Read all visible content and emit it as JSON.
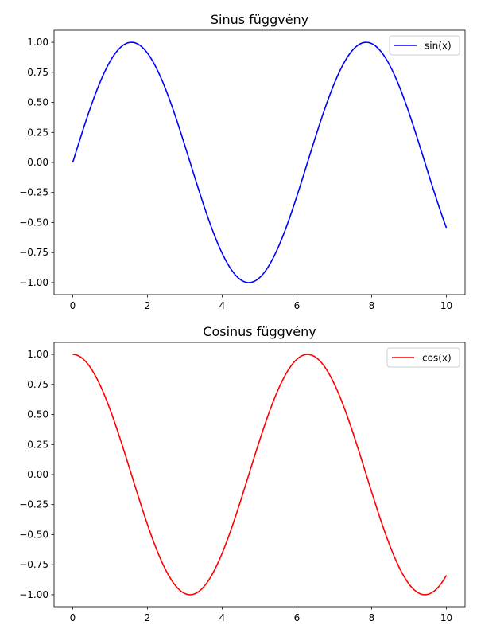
{
  "chart_data": [
    {
      "type": "line",
      "title": "Sinus függvény",
      "xlabel": "",
      "ylabel": "",
      "xlim": [
        -0.5,
        10.5
      ],
      "ylim": [
        -1.1,
        1.1
      ],
      "x_ticks": [
        0,
        2,
        4,
        6,
        8,
        10
      ],
      "x_tick_labels": [
        "0",
        "2",
        "4",
        "6",
        "8",
        "10"
      ],
      "y_ticks": [
        -1.0,
        -0.75,
        -0.5,
        -0.25,
        0.0,
        0.25,
        0.5,
        0.75,
        1.0
      ],
      "y_tick_labels": [
        "−1.00",
        "−0.75",
        "−0.50",
        "−0.25",
        "0.00",
        "0.25",
        "0.50",
        "0.75",
        "1.00"
      ],
      "grid": false,
      "legend_position": "top-right",
      "series": [
        {
          "name": "sin(x)",
          "color": "#0000ff",
          "function": "sin",
          "x": [
            0,
            0.5,
            1,
            1.5708,
            2,
            2.5,
            3,
            3.5,
            4,
            4.7124,
            5,
            5.5,
            6,
            6.5,
            7,
            7.5,
            7.854,
            8,
            8.5,
            9,
            9.5,
            10
          ],
          "values": [
            0,
            0.479,
            0.841,
            1,
            0.909,
            0.598,
            0.141,
            -0.351,
            -0.757,
            -1,
            -0.959,
            -0.706,
            -0.279,
            0.215,
            0.657,
            0.938,
            1,
            0.989,
            0.798,
            0.412,
            -0.075,
            -0.544
          ]
        }
      ]
    },
    {
      "type": "line",
      "title": "Cosinus függvény",
      "xlabel": "",
      "ylabel": "",
      "xlim": [
        -0.5,
        10.5
      ],
      "ylim": [
        -1.1,
        1.1
      ],
      "x_ticks": [
        0,
        2,
        4,
        6,
        8,
        10
      ],
      "x_tick_labels": [
        "0",
        "2",
        "4",
        "6",
        "8",
        "10"
      ],
      "y_ticks": [
        -1.0,
        -0.75,
        -0.5,
        -0.25,
        0.0,
        0.25,
        0.5,
        0.75,
        1.0
      ],
      "y_tick_labels": [
        "−1.00",
        "−0.75",
        "−0.50",
        "−0.25",
        "0.00",
        "0.25",
        "0.50",
        "0.75",
        "1.00"
      ],
      "grid": false,
      "legend_position": "top-right",
      "series": [
        {
          "name": "cos(x)",
          "color": "#ff0000",
          "function": "cos",
          "x": [
            0,
            0.5,
            1,
            1.5,
            2,
            2.5,
            3,
            3.1416,
            3.5,
            4,
            4.5,
            5,
            5.5,
            6,
            6.2832,
            6.5,
            7,
            7.5,
            8,
            8.5,
            9,
            9.4248,
            9.5,
            10
          ],
          "values": [
            1,
            0.878,
            0.54,
            0.071,
            -0.416,
            -0.801,
            -0.99,
            -1,
            -0.936,
            -0.654,
            -0.211,
            0.284,
            0.709,
            0.96,
            1,
            0.977,
            0.754,
            0.347,
            -0.146,
            -0.602,
            -0.911,
            -1,
            -0.997,
            -0.839
          ]
        }
      ]
    }
  ]
}
